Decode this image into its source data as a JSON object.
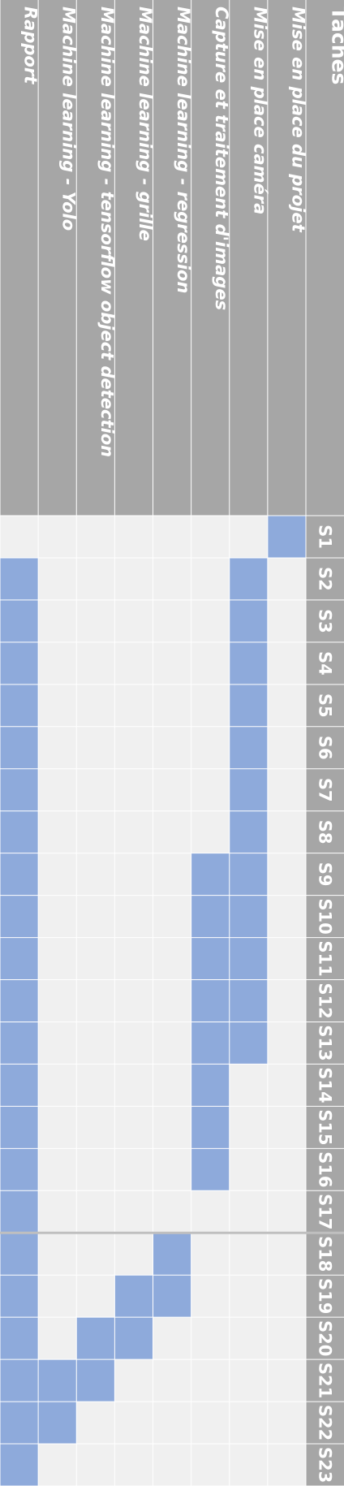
{
  "chart_data": {
    "type": "table",
    "header": "Tâches",
    "weeks": [
      "S1",
      "S2",
      "S3",
      "S4",
      "S5",
      "S6",
      "S7",
      "S8",
      "S9",
      "S10",
      "S11",
      "S12",
      "S13",
      "S14",
      "S15",
      "S16",
      "S17",
      "S18",
      "S19",
      "S20",
      "S21",
      "S22",
      "S23"
    ],
    "tasks": [
      {
        "name": "Mise en place du projet",
        "weeks": [
          1
        ]
      },
      {
        "name": "Mise en place caméra",
        "weeks": [
          2,
          3,
          4,
          5,
          6,
          7,
          8,
          9,
          10,
          11,
          12,
          13
        ]
      },
      {
        "name": "Capture et traitement d'images",
        "weeks": [
          9,
          10,
          11,
          12,
          13,
          14,
          15,
          16
        ]
      },
      {
        "name": "Machine learning - regression",
        "weeks": [
          18,
          19
        ]
      },
      {
        "name": "Machine learning - grille",
        "weeks": [
          19,
          20
        ]
      },
      {
        "name": "Machine learning - tensorflow object detection",
        "weeks": [
          20,
          21
        ]
      },
      {
        "name": "Machine learning - Yolo",
        "weeks": [
          21,
          22
        ]
      },
      {
        "name": "Rapport",
        "weeks": [
          2,
          3,
          4,
          5,
          6,
          7,
          8,
          9,
          10,
          11,
          12,
          13,
          14,
          15,
          16,
          17,
          18,
          19,
          20,
          21,
          22,
          23
        ]
      }
    ],
    "colors": {
      "header_bg": "#a6a6a6",
      "empty_cell": "#f0f0f0",
      "filled_cell": "#8eaadb",
      "grid_line": "#ffffff",
      "text": "#ffffff"
    }
  }
}
